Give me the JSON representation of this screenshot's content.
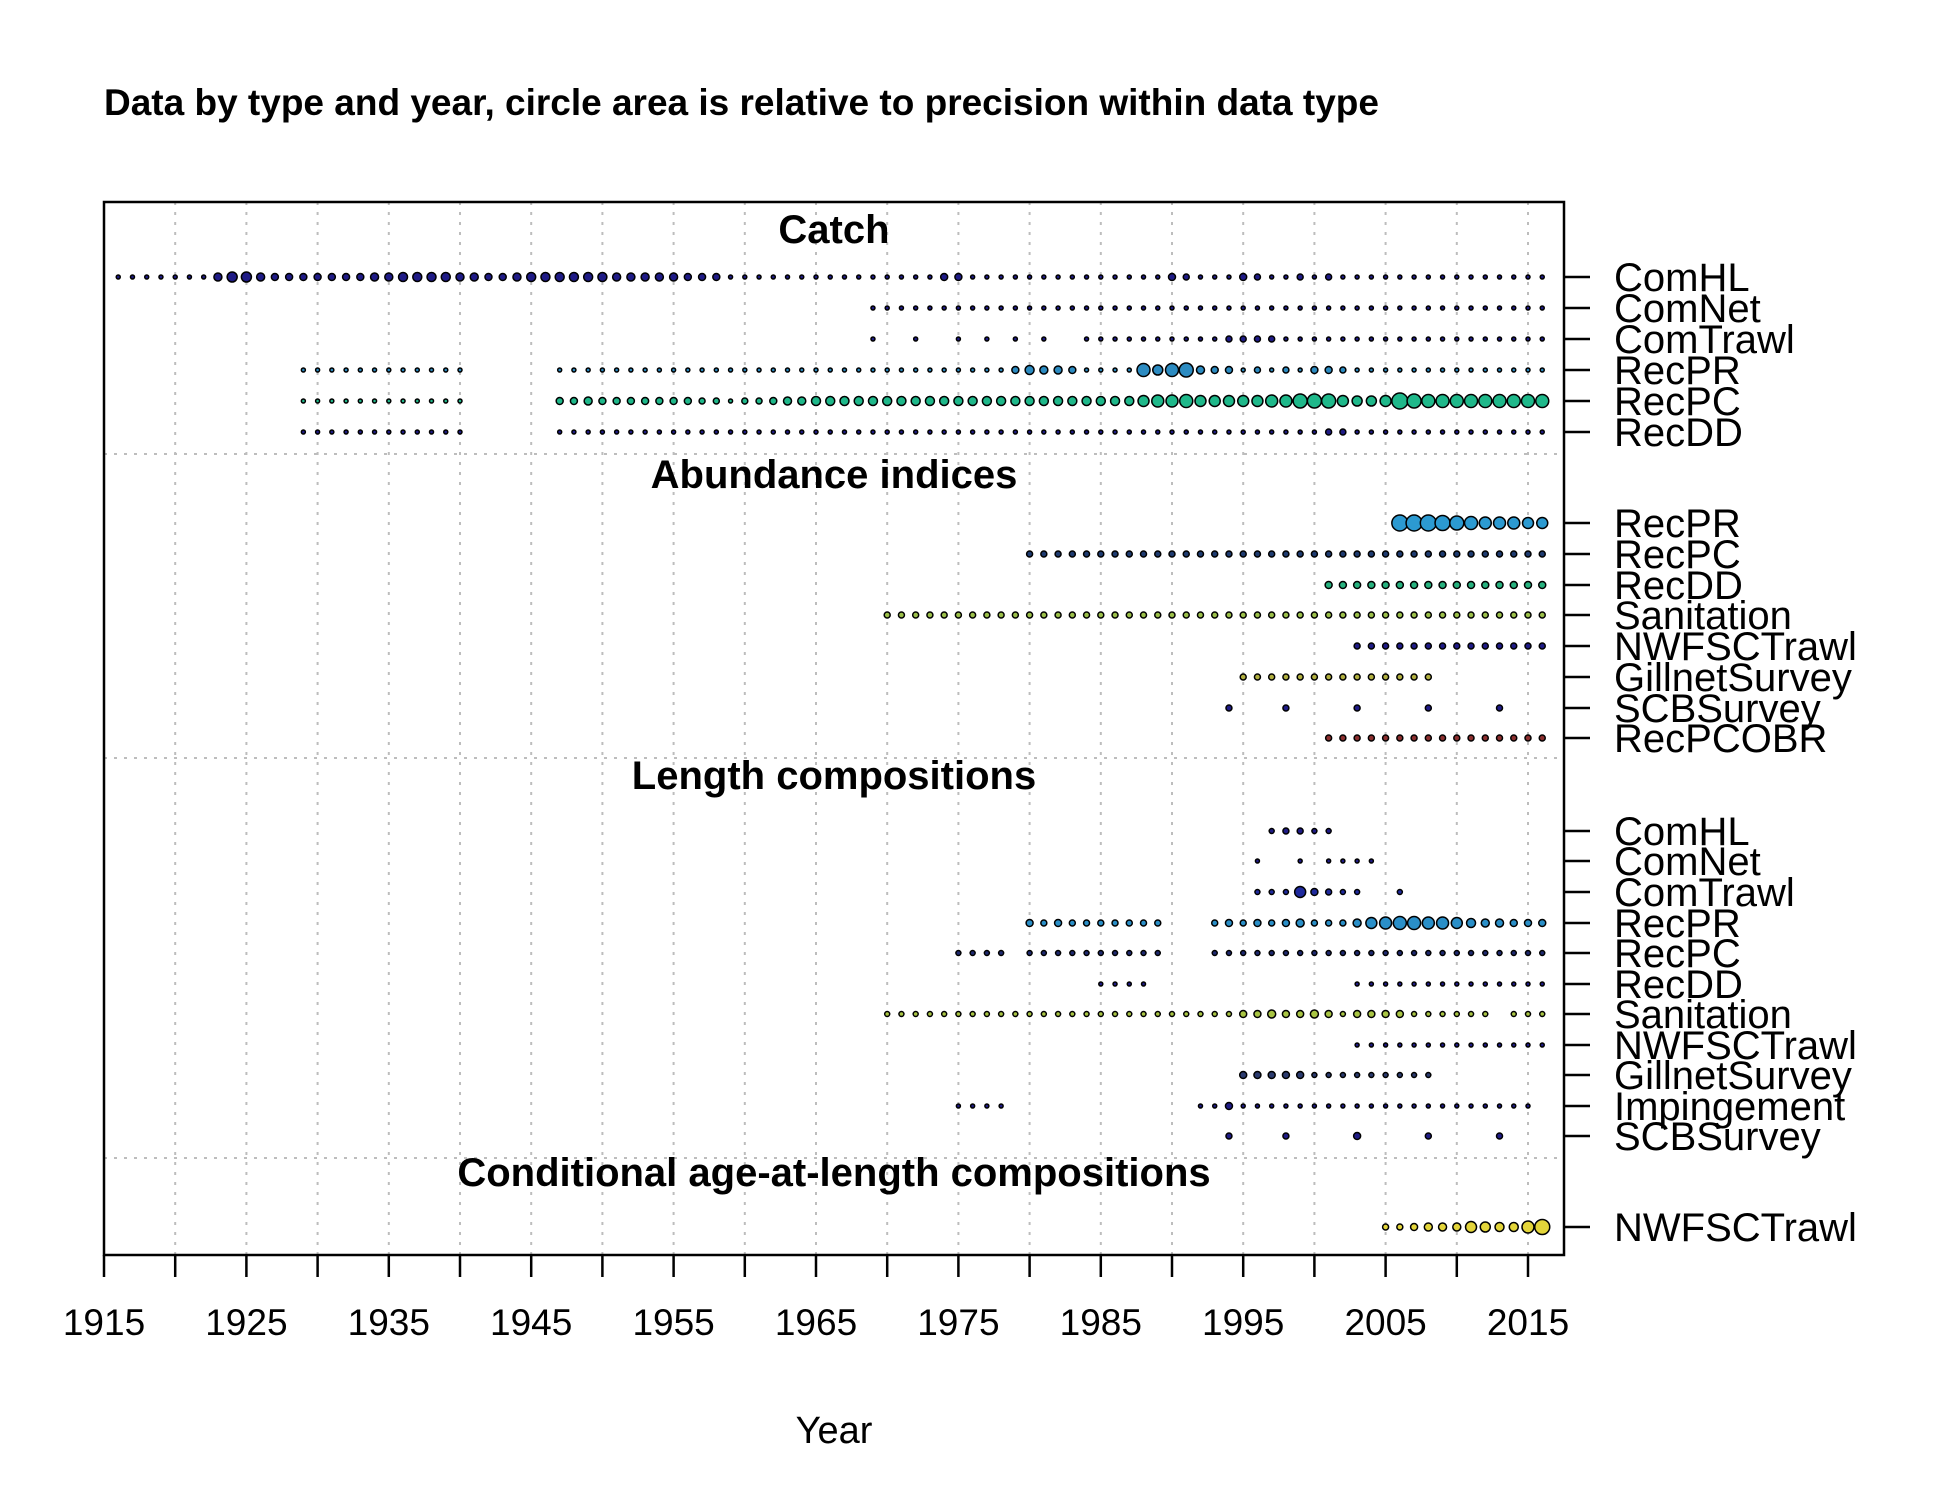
{
  "chart_data": {
    "type": "scatter",
    "title": "Data by type and year, circle area is relative to precision within data type",
    "xlabel": "Year",
    "xlim": [
      1915,
      2017
    ],
    "xticks": [
      1915,
      1925,
      1935,
      1945,
      1955,
      1965,
      1975,
      1985,
      1995,
      2005,
      2015
    ],
    "xgrid": [
      1915,
      1920,
      1925,
      1930,
      1935,
      1940,
      1945,
      1950,
      1955,
      1960,
      1965,
      1970,
      1975,
      1980,
      1985,
      1990,
      1995,
      2000,
      2005,
      2010,
      2015
    ],
    "grid": true,
    "color_scale": [
      "#0d0887",
      "#30a2da",
      "#21c28b",
      "#9ed93a",
      "#fde725"
    ],
    "panels": [
      {
        "title": "Catch",
        "series": [
          {
            "name": "ComHL",
            "color": "#1f1b86",
            "start": 1916,
            "end": 2016,
            "gaps": [],
            "sizes": {
              "1923": 4,
              "1924": 5,
              "1925": 5,
              "1926": 4,
              "1927": 3.5,
              "1928": 3.5,
              "1929": 3.5,
              "1930": 3.5,
              "1931": 3.5,
              "1932": 3.5,
              "1933": 3.5,
              "1934": 4,
              "1935": 4,
              "1936": 4.5,
              "1937": 4.5,
              "1938": 4.5,
              "1939": 4.5,
              "1940": 4,
              "1941": 4,
              "1942": 3.5,
              "1943": 3.5,
              "1944": 4,
              "1945": 4.5,
              "1946": 4.5,
              "1947": 4.5,
              "1948": 4.5,
              "1949": 4.5,
              "1950": 4.5,
              "1951": 4,
              "1952": 4,
              "1953": 4,
              "1954": 4,
              "1955": 4,
              "1956": 3.5,
              "1957": 3.5,
              "1958": 3.5,
              "1974": 3.5,
              "1975": 3.5,
              "1990": 3.5,
              "1991": 3,
              "1995": 3.5,
              "1996": 3,
              "1999": 3,
              "2001": 3
            }
          },
          {
            "name": "ComNet",
            "color": "#1f1b86",
            "start": 1969,
            "end": 2016,
            "gaps": [],
            "sizes": {}
          },
          {
            "name": "ComTrawl",
            "color": "#1f1b86",
            "start": 1969,
            "end": 2016,
            "gaps": [
              1970,
              1971,
              1973,
              1974,
              1976,
              1978,
              1980,
              1982,
              1983
            ],
            "sizes": {
              "1994": 3,
              "1995": 3,
              "1996": 3,
              "1997": 3
            }
          },
          {
            "name": "RecPR",
            "color": "#2c8bc1",
            "start": 1929,
            "end": 2016,
            "gaps": [
              1941,
              1942,
              1943,
              1944,
              1945,
              1946
            ],
            "sizes": {
              "1979": 3.5,
              "1980": 4.5,
              "1981": 4,
              "1982": 4,
              "1983": 3.5,
              "1988": 6.5,
              "1989": 5,
              "1990": 6.5,
              "1991": 7,
              "1992": 4,
              "1993": 3.5,
              "1994": 3.5,
              "1996": 3,
              "1998": 3,
              "2000": 3.5,
              "2001": 3.5,
              "2002": 3
            }
          },
          {
            "name": "RecPC",
            "color": "#1fb88a",
            "start": 1929,
            "end": 2016,
            "gaps": [
              1941,
              1942,
              1943,
              1944,
              1945,
              1946
            ],
            "sizes": {
              "1947": 3.5,
              "1948": 3.5,
              "1949": 4,
              "1950": 3.5,
              "1951": 3.5,
              "1952": 3.5,
              "1953": 3.5,
              "1954": 3.5,
              "1955": 3.5,
              "1956": 3.5,
              "1957": 3,
              "1958": 3,
              "1960": 3,
              "1961": 3,
              "1962": 3.5,
              "1963": 4,
              "1964": 4,
              "1965": 4.5,
              "1966": 4.5,
              "1967": 4.5,
              "1968": 4.5,
              "1969": 4.5,
              "1970": 4.5,
              "1971": 4.5,
              "1972": 4.5,
              "1973": 4.5,
              "1974": 4.5,
              "1975": 4.5,
              "1976": 4.5,
              "1977": 4.5,
              "1978": 4.5,
              "1979": 4.5,
              "1980": 4.5,
              "1981": 4.5,
              "1982": 4.5,
              "1983": 4.5,
              "1984": 4.5,
              "1985": 4.5,
              "1986": 4.5,
              "1987": 4.5,
              "1988": 5.5,
              "1989": 6,
              "1990": 6,
              "1991": 6.5,
              "1992": 5.5,
              "1993": 5.5,
              "1994": 5.5,
              "1995": 5.5,
              "1996": 5.5,
              "1997": 6,
              "1998": 6,
              "1999": 7,
              "2000": 7,
              "2001": 7,
              "2002": 5.5,
              "2003": 5,
              "2004": 5,
              "2005": 5.5,
              "2006": 8,
              "2007": 7,
              "2008": 6.5,
              "2009": 6.5,
              "2010": 6.5,
              "2011": 6.5,
              "2012": 6.5,
              "2013": 6.5,
              "2014": 6.5,
              "2015": 6.5,
              "2016": 6.5
            }
          },
          {
            "name": "RecDD",
            "color": "#1f1b86",
            "start": 1929,
            "end": 2016,
            "gaps": [
              1941,
              1942,
              1943,
              1944,
              1945,
              1946
            ],
            "sizes": {
              "2001": 3,
              "2002": 3
            }
          }
        ]
      },
      {
        "title": "Abundance indices",
        "series": [
          {
            "name": "RecPR",
            "color": "#2c9ad1",
            "start": 2006,
            "end": 2016,
            "gaps": [],
            "sizes": {
              "2006": 8,
              "2007": 8,
              "2008": 8,
              "2009": 7.5,
              "2010": 7,
              "2011": 6.5,
              "2012": 6,
              "2013": 6,
              "2014": 6,
              "2015": 5.5,
              "2016": 5.5
            }
          },
          {
            "name": "RecPC",
            "color": "#1e3b70",
            "start": 1980,
            "end": 2016,
            "gaps": [],
            "sizes": {},
            "base": 3
          },
          {
            "name": "RecDD",
            "color": "#27b27f",
            "start": 2001,
            "end": 2016,
            "gaps": [],
            "sizes": {},
            "base": 3.5
          },
          {
            "name": "Sanitation",
            "color": "#9cc04a",
            "start": 1970,
            "end": 2016,
            "gaps": [],
            "sizes": {
              "1970": 3,
              "1971": 3,
              "1972": 3
            },
            "base": 3
          },
          {
            "name": "NWFSCTrawl",
            "color": "#1f1b86",
            "start": 2003,
            "end": 2016,
            "gaps": [],
            "sizes": {},
            "base": 3
          },
          {
            "name": "GillnetSurvey",
            "color": "#b2b040",
            "start": 1995,
            "end": 2008,
            "gaps": [],
            "sizes": {},
            "base": 3
          },
          {
            "name": "SCBSurvey",
            "color": "#1f1b86",
            "start": 1994,
            "end": 2013,
            "gaps": [
              1995,
              1996,
              1997,
              1999,
              2000,
              2001,
              2002,
              2004,
              2005,
              2006,
              2007,
              2009,
              2010,
              2011,
              2012
            ],
            "sizes": {},
            "base": 3
          },
          {
            "name": "RecPCOBR",
            "color": "#8c2f2f",
            "start": 2001,
            "end": 2016,
            "gaps": [],
            "sizes": {},
            "base": 3
          }
        ]
      },
      {
        "title": "Length compositions",
        "series": [
          {
            "name": "ComHL",
            "color": "#1f1b86",
            "start": 1997,
            "end": 2001,
            "gaps": [],
            "sizes": {
              "1998": 3,
              "1999": 3
            },
            "base": 2.5
          },
          {
            "name": "ComNet",
            "color": "#1f1b86",
            "start": 1996,
            "end": 2004,
            "gaps": [
              1997,
              1998,
              2000
            ],
            "sizes": {},
            "base": 2
          },
          {
            "name": "ComTrawl",
            "color": "#1f2a9e",
            "start": 1996,
            "end": 2006,
            "gaps": [
              2004,
              2005
            ],
            "sizes": {
              "1999": 5.5,
              "2000": 3.5,
              "2001": 3
            },
            "base": 2.5
          },
          {
            "name": "RecPR",
            "color": "#2a8fc8",
            "start": 1980,
            "end": 2016,
            "gaps": [
              1990,
              1991,
              1992
            ],
            "sizes": {
              "1980": 3.5,
              "1981": 3,
              "1982": 3.5,
              "1994": 3.5,
              "1996": 3.5,
              "1998": 3.5,
              "1999": 4,
              "2003": 4,
              "2004": 5.5,
              "2005": 6,
              "2006": 6.5,
              "2007": 6.5,
              "2008": 6,
              "2009": 6,
              "2010": 5.5,
              "2011": 4.5,
              "2012": 4,
              "2013": 4,
              "2014": 3.5,
              "2015": 3.5,
              "2016": 3.5
            },
            "base": 3
          },
          {
            "name": "RecPC",
            "color": "#1f2a70",
            "start": 1975,
            "end": 2016,
            "gaps": [
              1979,
              1990,
              1991,
              1992
            ],
            "sizes": {},
            "base": 2.5
          },
          {
            "name": "RecDD",
            "color": "#1f1b86",
            "start": 1985,
            "end": 2016,
            "gaps": [
              1989,
              1990,
              1991,
              1992,
              1993,
              1994,
              1995,
              1996,
              1997,
              1998,
              1999,
              2000,
              2001,
              2002
            ],
            "sizes": {},
            "base": 2
          },
          {
            "name": "Sanitation",
            "color": "#a9c544",
            "start": 1970,
            "end": 2016,
            "gaps": [
              2013
            ],
            "sizes": {
              "1995": 3.5,
              "1996": 3.5,
              "1997": 4,
              "1998": 3.5,
              "1999": 3.5,
              "2000": 4,
              "2001": 3.5,
              "2003": 3.5,
              "2004": 3.5,
              "2005": 3.5,
              "2006": 3.5
            },
            "base": 2.5
          },
          {
            "name": "NWFSCTrawl",
            "color": "#1f1b86",
            "start": 2003,
            "end": 2016,
            "gaps": [],
            "sizes": {},
            "base": 2
          },
          {
            "name": "GillnetSurvey",
            "color": "#2b3b6f",
            "start": 1995,
            "end": 2008,
            "gaps": [],
            "sizes": {
              "1995": 3.5,
              "1996": 3.5,
              "1997": 3.5,
              "1998": 3.5,
              "1999": 3.5
            },
            "base": 2.5
          },
          {
            "name": "Impingement",
            "color": "#1f1b86",
            "start": 1975,
            "end": 2015,
            "gaps": [
              1979,
              1980,
              1981,
              1982,
              1983,
              1984,
              1985,
              1986,
              1987,
              1988,
              1989,
              1990,
              1991
            ],
            "sizes": {
              "1994": 3.5
            },
            "base": 2
          },
          {
            "name": "SCBSurvey",
            "color": "#1f1b86",
            "start": 1994,
            "end": 2013,
            "gaps": [
              1995,
              1996,
              1997,
              1999,
              2000,
              2001,
              2002,
              2004,
              2005,
              2006,
              2007,
              2009,
              2010,
              2011,
              2012
            ],
            "sizes": {
              "2003": 3.5
            },
            "base": 3
          }
        ]
      },
      {
        "title": "Conditional age-at-length compositions",
        "series": [
          {
            "name": "NWFSCTrawl",
            "color": "#e3d53a",
            "start": 2005,
            "end": 2016,
            "gaps": [],
            "sizes": {
              "2005": 3,
              "2006": 3,
              "2007": 3.5,
              "2008": 4,
              "2009": 4,
              "2010": 4,
              "2011": 5.5,
              "2012": 5,
              "2013": 4.5,
              "2014": 4.5,
              "2015": 6,
              "2016": 7.5
            },
            "base": 3
          }
        ]
      }
    ]
  }
}
